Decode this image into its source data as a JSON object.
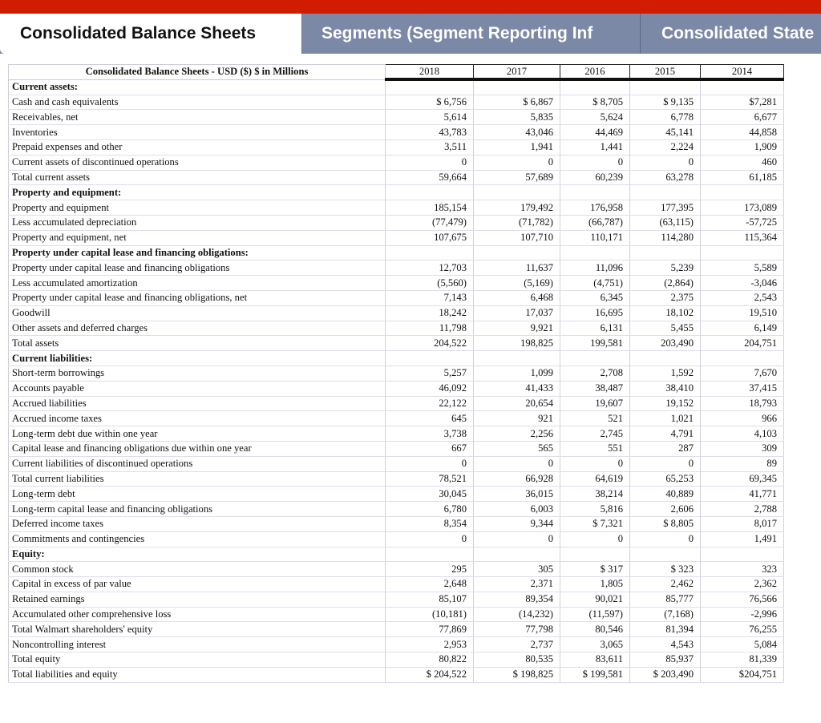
{
  "tabs": [
    "Consolidated Balance Sheets",
    "Segments (Segment Reporting Inf",
    "Consolidated State"
  ],
  "colors": {
    "top_bar": "#d01c00",
    "inactive_tab": "#7b88a6"
  },
  "table": {
    "title": "Consolidated Balance Sheets - USD ($) $ in Millions",
    "years": [
      "2018",
      "2017",
      "2016",
      "2015",
      "2014"
    ],
    "rows": [
      {
        "label": "Current assets:",
        "section": true,
        "values": [
          "",
          "",
          "",
          "",
          ""
        ]
      },
      {
        "label": "Cash and cash equivalents",
        "values": [
          "$ 6,756",
          "$ 6,867",
          "$ 8,705",
          "$ 9,135",
          "$7,281"
        ]
      },
      {
        "label": "Receivables, net",
        "values": [
          "5,614",
          "5,835",
          "5,624",
          "6,778",
          "6,677"
        ]
      },
      {
        "label": "Inventories",
        "values": [
          "43,783",
          "43,046",
          "44,469",
          "45,141",
          "44,858"
        ]
      },
      {
        "label": "Prepaid expenses and other",
        "values": [
          "3,511",
          "1,941",
          "1,441",
          "2,224",
          "1,909"
        ]
      },
      {
        "label": "Current assets of discontinued operations",
        "values": [
          "0",
          "0",
          "0",
          "0",
          "460"
        ]
      },
      {
        "label": "Total current assets",
        "values": [
          "59,664",
          "57,689",
          "60,239",
          "63,278",
          "61,185"
        ]
      },
      {
        "label": "Property and equipment:",
        "section": true,
        "values": [
          "",
          "",
          "",
          "",
          ""
        ]
      },
      {
        "label": "Property and equipment",
        "values": [
          "185,154",
          "179,492",
          "176,958",
          "177,395",
          "173,089"
        ]
      },
      {
        "label": "Less accumulated depreciation",
        "values": [
          "(77,479)",
          "(71,782)",
          "(66,787)",
          "(63,115)",
          "-57,725"
        ]
      },
      {
        "label": "Property and equipment, net",
        "values": [
          "107,675",
          "107,710",
          "110,171",
          "114,280",
          "115,364"
        ]
      },
      {
        "label": "Property under capital lease and financing obligations:",
        "section": true,
        "values": [
          "",
          "",
          "",
          "",
          ""
        ]
      },
      {
        "label": "Property under capital lease and financing obligations",
        "values": [
          "12,703",
          "11,637",
          "11,096",
          "5,239",
          "5,589"
        ]
      },
      {
        "label": "Less accumulated amortization",
        "values": [
          "(5,560)",
          "(5,169)",
          "(4,751)",
          "(2,864)",
          "-3,046"
        ]
      },
      {
        "label": "Property under capital lease and financing obligations, net",
        "values": [
          "7,143",
          "6,468",
          "6,345",
          "2,375",
          "2,543"
        ]
      },
      {
        "label": "Goodwill",
        "values": [
          "18,242",
          "17,037",
          "16,695",
          "18,102",
          "19,510"
        ]
      },
      {
        "label": "Other assets and deferred charges",
        "values": [
          "11,798",
          "9,921",
          "6,131",
          "5,455",
          "6,149"
        ]
      },
      {
        "label": "Total assets",
        "values": [
          "204,522",
          "198,825",
          "199,581",
          "203,490",
          "204,751"
        ]
      },
      {
        "label": "Current liabilities:",
        "section": true,
        "values": [
          "",
          "",
          "",
          "",
          ""
        ]
      },
      {
        "label": "Short-term borrowings",
        "values": [
          "5,257",
          "1,099",
          "2,708",
          "1,592",
          "7,670"
        ]
      },
      {
        "label": "Accounts payable",
        "values": [
          "46,092",
          "41,433",
          "38,487",
          "38,410",
          "37,415"
        ]
      },
      {
        "label": "Accrued liabilities",
        "values": [
          "22,122",
          "20,654",
          "19,607",
          "19,152",
          "18,793"
        ]
      },
      {
        "label": "Accrued income taxes",
        "values": [
          "645",
          "921",
          "521",
          "1,021",
          "966"
        ]
      },
      {
        "label": "Long-term debt due within one year",
        "values": [
          "3,738",
          "2,256",
          "2,745",
          "4,791",
          "4,103"
        ]
      },
      {
        "label": "Capital lease and financing obligations due within one year",
        "values": [
          "667",
          "565",
          "551",
          "287",
          "309"
        ]
      },
      {
        "label": "Current liabilities of discontinued operations",
        "values": [
          "0",
          "0",
          "0",
          "0",
          "89"
        ]
      },
      {
        "label": "Total current liabilities",
        "values": [
          "78,521",
          "66,928",
          "64,619",
          "65,253",
          "69,345"
        ]
      },
      {
        "label": "Long-term debt",
        "values": [
          "30,045",
          "36,015",
          "38,214",
          "40,889",
          "41,771"
        ]
      },
      {
        "label": "Long-term capital lease and financing obligations",
        "values": [
          "6,780",
          "6,003",
          "5,816",
          "2,606",
          "2,788"
        ]
      },
      {
        "label": "Deferred income taxes",
        "values": [
          "8,354",
          "9,344",
          "$ 7,321",
          "$ 8,805",
          "8,017"
        ]
      },
      {
        "label": "Commitments and contingencies",
        "values": [
          "0",
          "0",
          "0",
          "0",
          "1,491"
        ]
      },
      {
        "label": "Equity:",
        "section": true,
        "values": [
          "",
          "",
          "",
          "",
          ""
        ]
      },
      {
        "label": "Common stock",
        "values": [
          "295",
          "305",
          "$ 317",
          "$ 323",
          "323"
        ]
      },
      {
        "label": "Capital in excess of par value",
        "values": [
          "2,648",
          "2,371",
          "1,805",
          "2,462",
          "2,362"
        ]
      },
      {
        "label": "Retained earnings",
        "values": [
          "85,107",
          "89,354",
          "90,021",
          "85,777",
          "76,566"
        ]
      },
      {
        "label": "Accumulated other comprehensive loss",
        "values": [
          "(10,181)",
          "(14,232)",
          "(11,597)",
          "(7,168)",
          "-2,996"
        ]
      },
      {
        "label": "Total Walmart shareholders' equity",
        "values": [
          "77,869",
          "77,798",
          "80,546",
          "81,394",
          "76,255"
        ]
      },
      {
        "label": "Noncontrolling interest",
        "values": [
          "2,953",
          "2,737",
          "3,065",
          "4,543",
          "5,084"
        ]
      },
      {
        "label": "Total equity",
        "values": [
          "80,822",
          "80,535",
          "83,611",
          "85,937",
          "81,339"
        ]
      },
      {
        "label": "Total liabilities and equity",
        "values": [
          "$ 204,522",
          "$ 198,825",
          "$ 199,581",
          "$ 203,490",
          "$204,751"
        ]
      }
    ]
  }
}
